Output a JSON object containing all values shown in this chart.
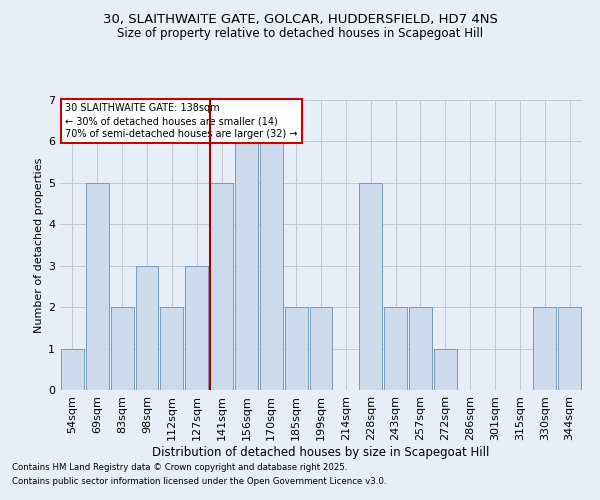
{
  "title1": "30, SLAITHWAITE GATE, GOLCAR, HUDDERSFIELD, HD7 4NS",
  "title2": "Size of property relative to detached houses in Scapegoat Hill",
  "xlabel": "Distribution of detached houses by size in Scapegoat Hill",
  "ylabel": "Number of detached properties",
  "categories": [
    "54sqm",
    "69sqm",
    "83sqm",
    "98sqm",
    "112sqm",
    "127sqm",
    "141sqm",
    "156sqm",
    "170sqm",
    "185sqm",
    "199sqm",
    "214sqm",
    "228sqm",
    "243sqm",
    "257sqm",
    "272sqm",
    "286sqm",
    "301sqm",
    "315sqm",
    "330sqm",
    "344sqm"
  ],
  "values": [
    1,
    5,
    2,
    3,
    2,
    3,
    5,
    6,
    6,
    2,
    2,
    0,
    5,
    2,
    2,
    1,
    0,
    0,
    0,
    2,
    2
  ],
  "bar_color": "#ccdaeb",
  "bar_edge_color": "#7a9aba",
  "highlight_line_color": "#aa0000",
  "annotation_line1": "30 SLAITHWAITE GATE: 138sqm",
  "annotation_line2": "← 30% of detached houses are smaller (14)",
  "annotation_line3": "70% of semi-detached houses are larger (32) →",
  "annotation_box_color": "#ffffff",
  "annotation_border_color": "#cc0000",
  "ylim": [
    0,
    7
  ],
  "yticks": [
    0,
    1,
    2,
    3,
    4,
    5,
    6,
    7
  ],
  "footnote1": "Contains HM Land Registry data © Crown copyright and database right 2025.",
  "footnote2": "Contains public sector information licensed under the Open Government Licence v3.0.",
  "bg_color": "#e8eef8",
  "plot_bg_color": "#e8eef8"
}
